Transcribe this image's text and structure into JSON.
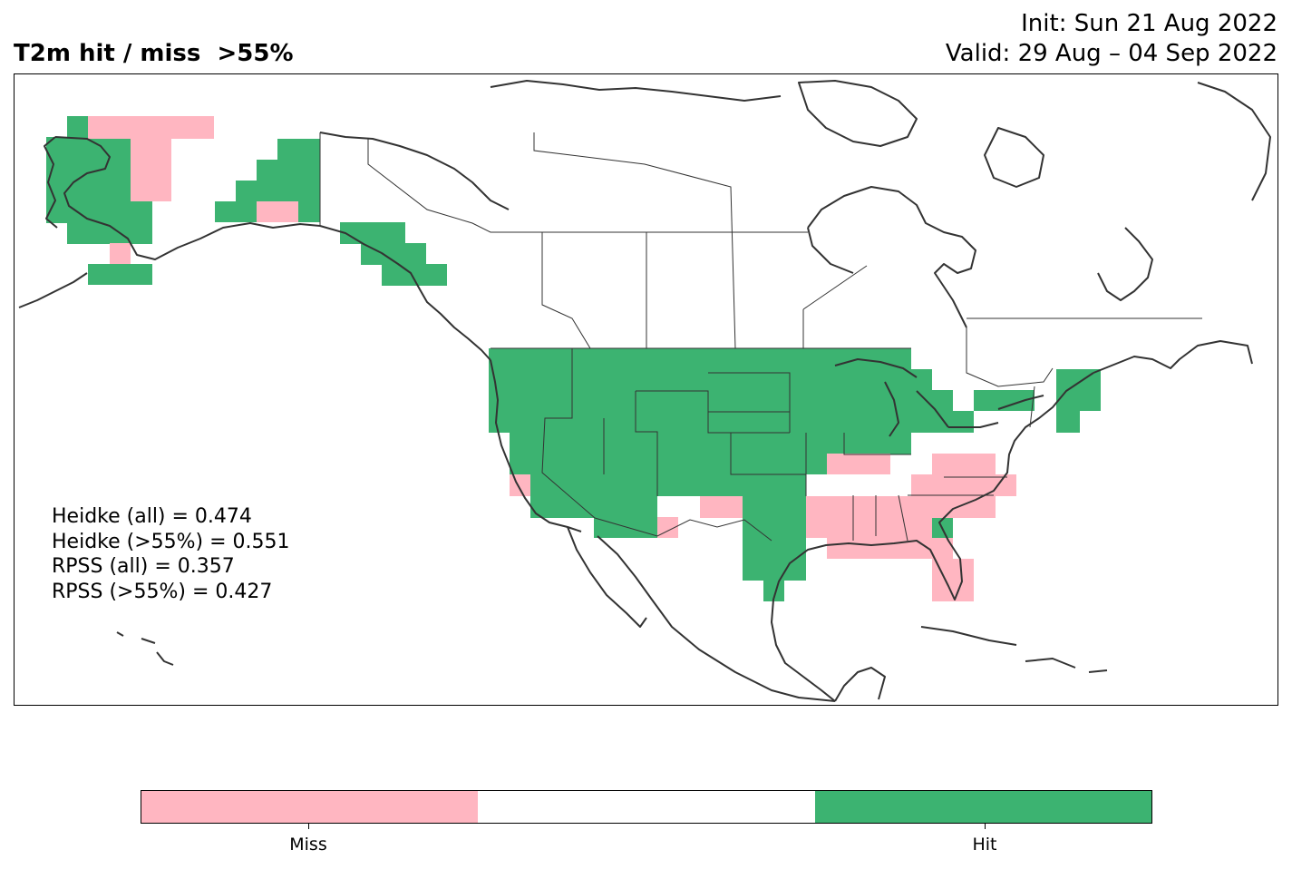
{
  "header": {
    "title": "T2m hit / miss  >55%",
    "init": "Init: Sun 21 Aug 2022",
    "valid": "Valid: 29 Aug – 04 Sep 2022"
  },
  "stats": {
    "heidke_all": "Heidke (all) = 0.474",
    "heidke_55": "Heidke (>55%) = 0.551",
    "rpss_all": "RPSS (all) = 0.357",
    "rpss_55": "RPSS (>55%) = 0.427"
  },
  "colorbar": {
    "classes": [
      {
        "label": "Miss",
        "color": "#ffb6c1"
      },
      {
        "label": "",
        "color": "#ffffff"
      },
      {
        "label": "Hit",
        "color": "#3cb371"
      }
    ]
  },
  "colors": {
    "hit": "#3cb371",
    "miss": "#ffb6c1",
    "coastline": "#333333"
  }
}
